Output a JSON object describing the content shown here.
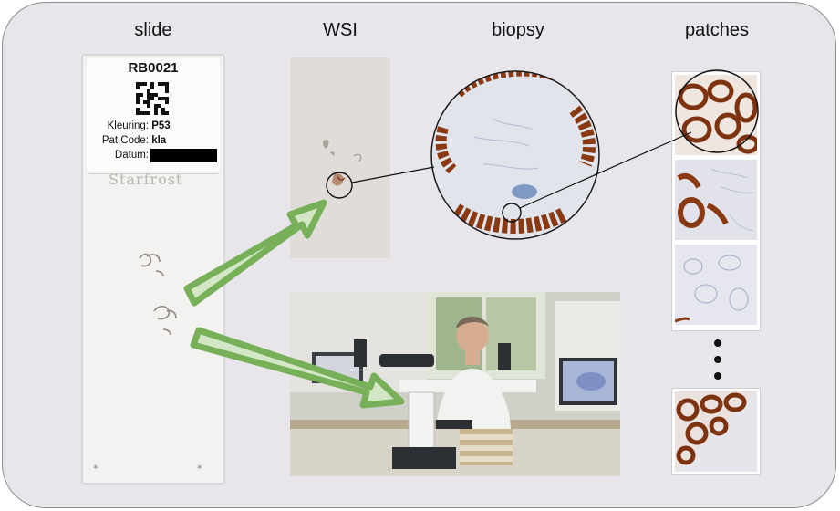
{
  "headings": {
    "slide": "slide",
    "wsi": "WSI",
    "biopsy": "biopsy",
    "patches": "patches"
  },
  "slide_label": {
    "id": "RB0021",
    "fields": [
      {
        "key": "Kleuring:",
        "value": "P53"
      },
      {
        "key": "Pat.Code:",
        "value": "kla"
      },
      {
        "key": "Datum:",
        "value": ""
      }
    ],
    "brand": "Starfrost"
  },
  "colors": {
    "panel": "#e8e6ea",
    "arrow_fill": "#d3e7c6",
    "arrow_stroke": "#78b05a",
    "stain_brown": "#8a3a12",
    "tissue_blue": "#c9d3e3"
  },
  "icons": [
    "qr-code-icon",
    "ellipsis-dots-icon"
  ]
}
